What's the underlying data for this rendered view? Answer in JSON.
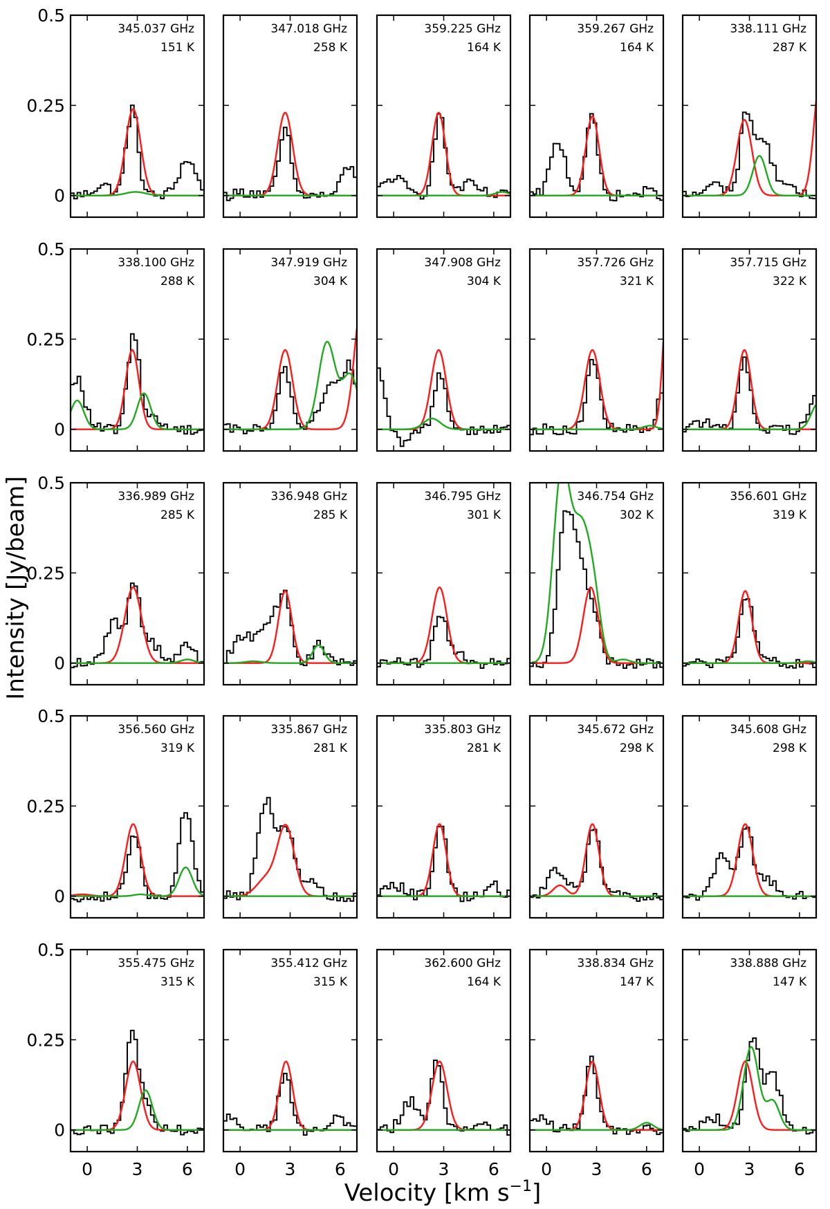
{
  "figure": {
    "ylabel": "Intensity [Jy/beam]",
    "xlabel_main": "Velocity [km s",
    "xlabel_sup": "−1",
    "xlabel_end": "]",
    "xticks": [
      0,
      3,
      6
    ],
    "xtick_labels": [
      "0",
      "3",
      "6"
    ],
    "yticks": [
      0,
      0.25,
      0.5
    ],
    "ytick_labels": [
      "0",
      "0.25",
      "0.5"
    ],
    "xlim": [
      -1,
      7
    ],
    "ylim": [
      -0.06,
      0.5
    ],
    "colors": {
      "observed": "#000000",
      "model_line": "#ff1a1a",
      "model_total": "#1faa1f"
    }
  },
  "chart_data": {
    "type": "line",
    "title": "",
    "xlabel": "Velocity [km s^-1]",
    "ylabel": "Intensity [Jy/beam]",
    "xlim": [
      -1,
      7
    ],
    "ylim": [
      -0.06,
      0.5
    ],
    "grid": false,
    "rows": 5,
    "cols": 5,
    "series_names": [
      "observed spectrum (histogram)",
      "model line (red)",
      "model total (green)"
    ],
    "panels": [
      {
        "freq": "345.037 GHz",
        "temp": "151 K",
        "red": [
          [
            2.75,
            0.24,
            0.45
          ]
        ],
        "green": [
          [
            2.9,
            0.01,
            0.6
          ]
        ],
        "obs": [
          [
            2.7,
            0.24,
            0.35
          ],
          [
            6.0,
            0.1,
            0.5
          ],
          [
            0.9,
            0.03,
            0.5
          ]
        ]
      },
      {
        "freq": "347.018 GHz",
        "temp": "258 K",
        "red": [
          [
            2.7,
            0.23,
            0.45
          ]
        ],
        "green": [],
        "obs": [
          [
            2.7,
            0.18,
            0.35
          ],
          [
            6.5,
            0.08,
            0.4
          ],
          [
            0.5,
            0.01,
            0.6
          ]
        ]
      },
      {
        "freq": "359.225 GHz",
        "temp": "164 K",
        "red": [
          [
            2.7,
            0.23,
            0.4
          ]
        ],
        "green": [
          [
            6.5,
            0.01,
            0.4
          ]
        ],
        "obs": [
          [
            2.75,
            0.22,
            0.35
          ],
          [
            0.0,
            0.05,
            0.6
          ],
          [
            4.5,
            0.03,
            0.6
          ]
        ]
      },
      {
        "freq": "359.267 GHz",
        "temp": "164 K",
        "red": [
          [
            2.75,
            0.22,
            0.4
          ]
        ],
        "green": [],
        "obs": [
          [
            2.7,
            0.22,
            0.35
          ],
          [
            0.7,
            0.15,
            0.45
          ],
          [
            6.0,
            0.01,
            0.5
          ]
        ]
      },
      {
        "freq": "338.111 GHz",
        "temp": "287 K",
        "red": [
          [
            2.7,
            0.21,
            0.45
          ],
          [
            7.3,
            0.35,
            0.4
          ]
        ],
        "green": [
          [
            3.6,
            0.11,
            0.4
          ]
        ],
        "obs": [
          [
            2.8,
            0.22,
            0.35
          ],
          [
            3.8,
            0.15,
            0.5
          ],
          [
            1.0,
            0.03,
            0.6
          ],
          [
            5.0,
            0.03,
            0.5
          ]
        ]
      },
      {
        "freq": "338.100 GHz",
        "temp": "288 K",
        "red": [
          [
            2.7,
            0.22,
            0.4
          ]
        ],
        "green": [
          [
            -0.6,
            0.08,
            0.4
          ],
          [
            3.4,
            0.1,
            0.4
          ]
        ],
        "obs": [
          [
            2.8,
            0.27,
            0.35
          ],
          [
            -0.6,
            0.14,
            0.45
          ],
          [
            4.0,
            0.03,
            0.5
          ]
        ]
      },
      {
        "freq": "347.919 GHz",
        "temp": "304 K",
        "red": [
          [
            2.7,
            0.22,
            0.45
          ],
          [
            7.3,
            0.35,
            0.45
          ]
        ],
        "green": [
          [
            5.2,
            0.24,
            0.5
          ],
          [
            6.6,
            0.15,
            0.5
          ]
        ],
        "obs": [
          [
            2.7,
            0.17,
            0.35
          ],
          [
            5.5,
            0.12,
            0.7
          ],
          [
            6.6,
            0.14,
            0.4
          ]
        ]
      },
      {
        "freq": "347.908 GHz",
        "temp": "304 K",
        "red": [
          [
            2.7,
            0.22,
            0.45
          ]
        ],
        "green": [
          [
            2.3,
            0.03,
            0.5
          ]
        ],
        "obs": [
          [
            2.8,
            0.16,
            0.35
          ],
          [
            -1.0,
            0.16,
            0.45
          ],
          [
            0.5,
            -0.04,
            0.5
          ]
        ]
      },
      {
        "freq": "357.726 GHz",
        "temp": "321 K",
        "red": [
          [
            2.75,
            0.22,
            0.45
          ],
          [
            7.3,
            0.4,
            0.3
          ]
        ],
        "green": [
          [
            6.2,
            0.01,
            0.4
          ]
        ],
        "obs": [
          [
            2.8,
            0.2,
            0.35
          ],
          [
            7.0,
            0.12,
            0.3
          ]
        ]
      },
      {
        "freq": "357.715 GHz",
        "temp": "322 K",
        "red": [
          [
            2.7,
            0.22,
            0.4
          ]
        ],
        "green": [
          [
            7.1,
            0.07,
            0.4
          ]
        ],
        "obs": [
          [
            2.7,
            0.2,
            0.35
          ],
          [
            6.9,
            0.1,
            0.35
          ],
          [
            0.0,
            0.02,
            0.6
          ]
        ]
      },
      {
        "freq": "336.989 GHz",
        "temp": "285 K",
        "red": [
          [
            2.75,
            0.21,
            0.5
          ]
        ],
        "green": [
          [
            6.0,
            0.01,
            0.4
          ]
        ],
        "obs": [
          [
            2.8,
            0.22,
            0.35
          ],
          [
            1.6,
            0.12,
            0.45
          ],
          [
            3.8,
            0.06,
            0.5
          ],
          [
            6.0,
            0.05,
            0.4
          ]
        ]
      },
      {
        "freq": "336.948 GHz",
        "temp": "285 K",
        "red": [
          [
            2.7,
            0.2,
            0.4
          ]
        ],
        "green": [
          [
            4.7,
            0.05,
            0.35
          ],
          [
            0.8,
            0.005,
            0.5
          ]
        ],
        "obs": [
          [
            2.7,
            0.18,
            0.35
          ],
          [
            1.8,
            0.12,
            0.5
          ],
          [
            0.3,
            0.08,
            0.6
          ],
          [
            4.7,
            0.05,
            0.35
          ]
        ]
      },
      {
        "freq": "346.795 GHz",
        "temp": "301 K",
        "red": [
          [
            2.75,
            0.21,
            0.45
          ]
        ],
        "green": [],
        "obs": [
          [
            2.8,
            0.13,
            0.35
          ],
          [
            3.7,
            0.03,
            0.6
          ]
        ]
      },
      {
        "freq": "346.754 GHz",
        "temp": "302 K",
        "red": [
          [
            2.65,
            0.21,
            0.45
          ]
        ],
        "green": [
          [
            0.9,
            0.52,
            0.5
          ],
          [
            2.1,
            0.36,
            0.55
          ],
          [
            2.9,
            0.12,
            0.4
          ],
          [
            4.6,
            0.01,
            0.4
          ]
        ],
        "obs": [
          [
            1.1,
            0.36,
            0.45
          ],
          [
            2.0,
            0.26,
            0.5
          ],
          [
            2.9,
            0.1,
            0.35
          ]
        ]
      },
      {
        "freq": "356.601 GHz",
        "temp": "319 K",
        "red": [
          [
            2.75,
            0.2,
            0.4
          ]
        ],
        "green": [
          [
            6.5,
            0.005,
            0.4
          ]
        ],
        "obs": [
          [
            2.8,
            0.18,
            0.35
          ],
          [
            3.5,
            0.03,
            0.5
          ],
          [
            6.5,
            -0.01,
            0.5
          ]
        ]
      },
      {
        "freq": "356.560 GHz",
        "temp": "319 K",
        "red": [
          [
            2.75,
            0.2,
            0.45
          ],
          [
            -0.3,
            0.005,
            0.5
          ]
        ],
        "green": [
          [
            5.9,
            0.08,
            0.4
          ],
          [
            3.2,
            0.005,
            0.4
          ]
        ],
        "obs": [
          [
            2.8,
            0.18,
            0.35
          ],
          [
            5.9,
            0.23,
            0.4
          ]
        ]
      },
      {
        "freq": "335.867 GHz",
        "temp": "281 K",
        "red": [
          [
            2.75,
            0.19,
            0.5
          ],
          [
            1.6,
            0.05,
            0.6
          ]
        ],
        "green": [],
        "obs": [
          [
            1.6,
            0.27,
            0.5
          ],
          [
            2.8,
            0.18,
            0.4
          ],
          [
            4.0,
            0.05,
            0.5
          ]
        ]
      },
      {
        "freq": "335.803 GHz",
        "temp": "281 K",
        "red": [
          [
            2.75,
            0.2,
            0.4
          ]
        ],
        "green": [],
        "obs": [
          [
            2.8,
            0.21,
            0.35
          ],
          [
            0.1,
            0.03,
            0.6
          ],
          [
            6.0,
            0.03,
            0.4
          ]
        ]
      },
      {
        "freq": "345.672 GHz",
        "temp": "298 K",
        "red": [
          [
            2.75,
            0.2,
            0.4
          ],
          [
            0.8,
            0.03,
            0.4
          ]
        ],
        "green": [],
        "obs": [
          [
            2.8,
            0.2,
            0.35
          ],
          [
            0.5,
            0.07,
            0.4
          ],
          [
            1.6,
            0.03,
            0.4
          ]
        ]
      },
      {
        "freq": "345.608 GHz",
        "temp": "298 K",
        "red": [
          [
            2.75,
            0.2,
            0.45
          ]
        ],
        "green": [],
        "obs": [
          [
            2.8,
            0.2,
            0.35
          ],
          [
            1.4,
            0.11,
            0.5
          ],
          [
            4.0,
            0.05,
            0.5
          ]
        ]
      },
      {
        "freq": "355.475 GHz",
        "temp": "315 K",
        "red": [
          [
            2.75,
            0.19,
            0.45
          ]
        ],
        "green": [
          [
            3.5,
            0.11,
            0.4
          ]
        ],
        "obs": [
          [
            2.7,
            0.28,
            0.35
          ],
          [
            3.5,
            0.06,
            0.4
          ]
        ]
      },
      {
        "freq": "355.412 GHz",
        "temp": "315 K",
        "red": [
          [
            2.75,
            0.19,
            0.4
          ]
        ],
        "green": [],
        "obs": [
          [
            2.7,
            0.17,
            0.35
          ],
          [
            -0.6,
            0.03,
            0.5
          ],
          [
            5.8,
            0.03,
            0.4
          ]
        ]
      },
      {
        "freq": "362.600 GHz",
        "temp": "164 K",
        "red": [
          [
            2.75,
            0.19,
            0.45
          ]
        ],
        "green": [],
        "obs": [
          [
            2.6,
            0.2,
            0.35
          ],
          [
            1.0,
            0.08,
            0.5
          ],
          [
            5.0,
            0.02,
            0.5
          ]
        ]
      },
      {
        "freq": "338.834 GHz",
        "temp": "147 K",
        "red": [
          [
            2.75,
            0.19,
            0.4
          ]
        ],
        "green": [
          [
            6.0,
            0.02,
            0.4
          ]
        ],
        "obs": [
          [
            2.7,
            0.19,
            0.35
          ],
          [
            -0.5,
            0.03,
            0.6
          ]
        ]
      },
      {
        "freq": "338.888 GHz",
        "temp": "147 K",
        "red": [
          [
            2.75,
            0.19,
            0.45
          ]
        ],
        "green": [
          [
            3.1,
            0.23,
            0.45
          ],
          [
            4.4,
            0.08,
            0.4
          ]
        ],
        "obs": [
          [
            3.2,
            0.26,
            0.4
          ],
          [
            4.4,
            0.15,
            0.45
          ],
          [
            1.0,
            0.03,
            0.6
          ]
        ]
      }
    ]
  }
}
